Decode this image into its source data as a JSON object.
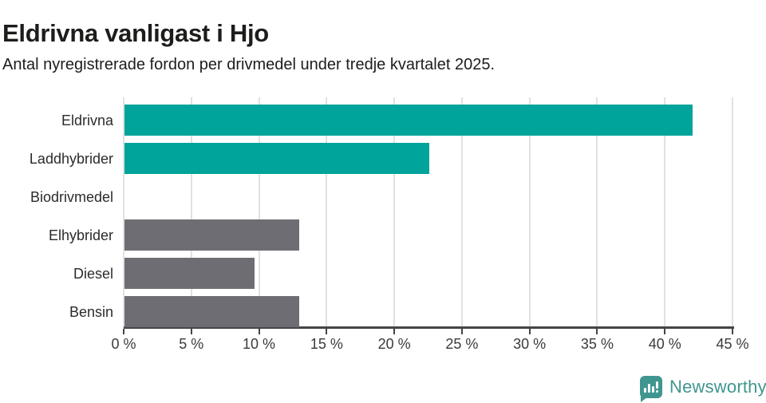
{
  "title": "Eldrivna vanligast i Hjo",
  "subtitle": "Antal nyregistrerade fordon per drivmedel under tredje kvartalet 2025.",
  "chart_data": {
    "type": "bar",
    "orientation": "horizontal",
    "title": "Eldrivna vanligast i Hjo",
    "subtitle": "Antal nyregistrerade fordon per drivmedel under tredje kvartalet 2025.",
    "categories": [
      "Eldrivna",
      "Laddhybrider",
      "Biodrivmedel",
      "Elhybrider",
      "Diesel",
      "Bensin"
    ],
    "values": [
      42,
      22.5,
      0,
      12.9,
      9.6,
      12.9
    ],
    "value_unit": "%",
    "bar_colors": [
      "#00a49a",
      "#00a49a",
      "#6d6d73",
      "#6d6d73",
      "#6d6d73",
      "#6d6d73"
    ],
    "xlabel": "",
    "ylabel": "",
    "xlim": [
      0,
      45
    ],
    "x_tick_values": [
      0,
      5,
      10,
      15,
      20,
      25,
      30,
      35,
      40,
      45
    ],
    "x_tick_labels": [
      "0 %",
      "5 %",
      "10 %",
      "15 %",
      "20 %",
      "25 %",
      "30 %",
      "35 %",
      "40 %",
      "45 %"
    ],
    "grid": "vertical",
    "legend": "none"
  },
  "colors": {
    "accent_teal": "#00a49a",
    "neutral_gray": "#6d6d73",
    "gridline": "#e1e1e1",
    "axis": "#45454a",
    "text": "#1d1d1b",
    "brand_teal": "#3f968f"
  },
  "footer": {
    "brand": "Newsworthy",
    "icon": "bar-chart-speech-bubble-icon"
  }
}
